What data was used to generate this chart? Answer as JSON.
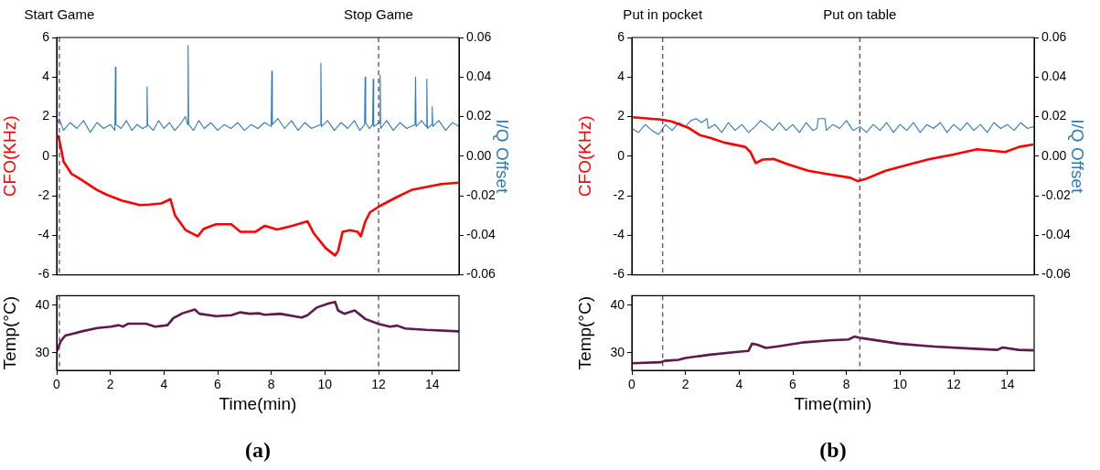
{
  "chart_data": [
    {
      "type": "line",
      "ylabel": "CFO(KHz)",
      "y2label": "I/Q Offset",
      "xlim": [
        0,
        15
      ],
      "xticks": [
        0,
        2,
        4,
        6,
        8,
        10,
        12,
        14
      ],
      "ylim": [
        -6,
        6
      ],
      "yticks": [
        -6,
        -4,
        -2,
        0,
        2,
        4,
        6
      ],
      "y2lim": [
        -0.06,
        0.06
      ],
      "y2ticks": [
        -0.06,
        -0.04,
        -0.02,
        {
          "value": 0,
          "label": "0.00"
        },
        0.02,
        0.04,
        0.06
      ],
      "tick_labels": "y",
      "series": [
        {
          "color": "#2e7bba",
          "x": [
            0,
            0.1,
            0.25,
            0.5,
            0.75,
            1.0,
            1.25,
            1.5,
            1.75,
            2.0,
            2.17,
            2.19,
            2.21,
            2.4,
            2.6,
            2.8,
            3.0,
            3.2,
            3.35,
            3.37,
            3.39,
            3.6,
            3.8,
            4.0,
            4.2,
            4.4,
            4.6,
            4.8,
            4.88,
            4.9,
            4.92,
            5.1,
            5.3,
            5.5,
            5.75,
            6.0,
            6.25,
            6.5,
            6.75,
            7.0,
            7.25,
            7.5,
            7.75,
            8.0,
            8.02,
            8.04,
            8.25,
            8.5,
            8.75,
            9.0,
            9.25,
            9.5,
            9.83,
            9.85,
            9.87,
            10.1,
            10.35,
            10.6,
            10.85,
            11.1,
            11.3,
            11.48,
            11.5,
            11.52,
            11.65,
            11.78,
            11.8,
            11.82,
            12.04,
            12.06,
            12.08,
            12.3,
            12.55,
            12.8,
            13.05,
            13.36,
            13.38,
            13.4,
            13.6,
            13.78,
            13.8,
            13.82,
            13.98,
            14.0,
            14.02,
            14.25,
            14.5,
            14.75,
            15.0
          ],
          "values": [
            0.016,
            0.019,
            0.013,
            0.017,
            0.014,
            0.018,
            0.012,
            0.017,
            0.014,
            0.016,
            0.013,
            0.045,
            0.016,
            0.014,
            0.018,
            0.013,
            0.016,
            0.014,
            0.015,
            0.035,
            0.016,
            0.013,
            0.018,
            0.014,
            0.017,
            0.013,
            0.016,
            0.02,
            0.016,
            0.056,
            0.016,
            0.013,
            0.018,
            0.014,
            0.017,
            0.013,
            0.016,
            0.014,
            0.017,
            0.013,
            0.016,
            0.014,
            0.017,
            0.015,
            0.043,
            0.016,
            0.019,
            0.014,
            0.018,
            0.013,
            0.017,
            0.014,
            0.016,
            0.047,
            0.015,
            0.018,
            0.013,
            0.017,
            0.014,
            0.018,
            0.013,
            0.016,
            0.04,
            0.017,
            0.014,
            0.016,
            0.039,
            0.015,
            0.017,
            0.041,
            0.014,
            0.018,
            0.013,
            0.017,
            0.014,
            0.016,
            0.04,
            0.015,
            0.018,
            0.015,
            0.039,
            0.014,
            0.016,
            0.025,
            0.015,
            0.018,
            0.013,
            0.017,
            0.015
          ],
          "axis": "y2"
        },
        {
          "color": "#ff0000",
          "x": [
            0.06,
            0.26,
            0.55,
            0.83,
            1.51,
            1.85,
            2.42,
            3.1,
            3.44,
            3.9,
            4.24,
            4.41,
            4.81,
            5.26,
            5.48,
            5.94,
            6.51,
            6.85,
            7.42,
            7.76,
            8.22,
            8.78,
            9.35,
            9.58,
            10.03,
            10.38,
            10.49,
            10.66,
            10.94,
            11.22,
            11.34,
            11.51,
            11.68,
            12.02,
            12.65,
            13.22,
            13.78,
            14.35,
            14.98
          ],
          "values": [
            1.07,
            -0.29,
            -0.89,
            -1.11,
            -1.71,
            -1.94,
            -2.24,
            -2.47,
            -2.45,
            -2.39,
            -2.17,
            -2.99,
            -3.74,
            -4.05,
            -3.67,
            -3.44,
            -3.44,
            -3.82,
            -3.82,
            -3.52,
            -3.71,
            -3.52,
            -3.29,
            -3.89,
            -4.65,
            -5.02,
            -4.8,
            -3.82,
            -3.74,
            -3.82,
            -4.05,
            -3.29,
            -2.84,
            -2.54,
            -2.09,
            -1.71,
            -1.56,
            -1.41,
            -1.34
          ]
        }
      ],
      "ref_lines": [
        {
          "axis": "x",
          "value": 0.1,
          "label": "Start Game",
          "color": "#6b2d5c",
          "line_style": "dashed"
        },
        {
          "axis": "x",
          "value": 12,
          "label": "Stop Game",
          "color": "#6b2d5c",
          "line_style": "dashed"
        }
      ]
    },
    {
      "type": "line",
      "xlabel": "Time(min)",
      "ylabel": "Temp(°C)",
      "xlim": [
        0,
        15
      ],
      "xticks": [
        0,
        2,
        4,
        6,
        8,
        10,
        12,
        14
      ],
      "ylim": [
        26.3,
        42
      ],
      "yticks": [
        30,
        40
      ],
      "series": [
        {
          "color": "#5e1a4c",
          "x": [
            0,
            0.15,
            0.32,
            0.6,
            0.94,
            1.51,
            2.02,
            2.31,
            2.48,
            2.65,
            3.33,
            3.67,
            4.13,
            4.35,
            4.69,
            5.15,
            5.32,
            5.94,
            6.51,
            6.85,
            7.19,
            7.53,
            7.76,
            8.33,
            9.13,
            9.35,
            9.69,
            10.15,
            10.38,
            10.49,
            10.72,
            11.11,
            11.51,
            11.97,
            12.42,
            12.7,
            12.99,
            13.78,
            15
          ],
          "values": [
            30.3,
            32.4,
            33.6,
            34.0,
            34.5,
            35.2,
            35.5,
            35.8,
            35.5,
            36.1,
            36.1,
            35.5,
            35.8,
            37.3,
            38.3,
            39.1,
            38.2,
            37.7,
            37.9,
            38.5,
            38.2,
            38.3,
            38.0,
            38.2,
            37.4,
            37.9,
            39.5,
            40.4,
            40.7,
            38.9,
            38.2,
            38.9,
            37.1,
            36.1,
            35.5,
            35.7,
            35.1,
            34.8,
            34.5
          ]
        }
      ],
      "ref_lines": [
        {
          "axis": "x",
          "value": 0.1,
          "color": "#6b2d5c",
          "line_style": "dashed"
        },
        {
          "axis": "x",
          "value": 12,
          "color": "#6b2d5c",
          "line_style": "dashed"
        }
      ],
      "annotations": [
        "(a)"
      ]
    },
    {
      "type": "line",
      "ylabel": "CFO(KHz)",
      "y2label": "I/Q Offset",
      "xlim": [
        0,
        15
      ],
      "xticks": [
        0,
        2,
        4,
        6,
        8,
        10,
        12,
        14
      ],
      "ylim": [
        -6,
        6
      ],
      "yticks": [
        -6,
        -4,
        -2,
        0,
        2,
        4,
        6
      ],
      "y2lim": [
        -0.06,
        0.06
      ],
      "y2ticks": [
        -0.06,
        -0.04,
        -0.02,
        {
          "value": 0,
          "label": "0.00"
        },
        0.02,
        0.04,
        0.06
      ],
      "tick_labels": "y",
      "series": [
        {
          "color": "#ff0000",
          "x": [
            0.04,
            1.09,
            1.48,
            2.13,
            2.53,
            2.92,
            3.44,
            4.23,
            4.42,
            4.62,
            4.88,
            5.28,
            5.8,
            6.58,
            7.37,
            8.15,
            8.42,
            8.68,
            9.46,
            10.25,
            11.03,
            11.95,
            12.87,
            13.92,
            14.44,
            14.97
          ],
          "values": [
            1.97,
            1.85,
            1.76,
            1.42,
            1.07,
            0.93,
            0.69,
            0.47,
            0.21,
            -0.35,
            -0.17,
            -0.14,
            -0.4,
            -0.74,
            -0.92,
            -1.09,
            -1.26,
            -1.17,
            -0.74,
            -0.45,
            -0.17,
            0.07,
            0.35,
            0.21,
            0.47,
            0.59
          ]
        },
        {
          "color": "#2e7bba",
          "x": [
            0,
            0.25,
            0.5,
            0.75,
            1.0,
            1.25,
            1.5,
            1.75,
            2.0,
            2.2,
            2.4,
            2.6,
            2.8,
            2.85,
            3.1,
            3.35,
            3.6,
            3.85,
            4.1,
            4.35,
            4.6,
            4.8,
            5.0,
            5.25,
            5.5,
            5.75,
            6.0,
            6.25,
            6.5,
            6.75,
            6.9,
            6.95,
            7.2,
            7.25,
            7.5,
            7.75,
            8.0,
            8.25,
            8.5,
            8.75,
            9.0,
            9.25,
            9.5,
            9.75,
            10.0,
            10.25,
            10.5,
            10.75,
            11.0,
            11.25,
            11.5,
            11.75,
            12.0,
            12.25,
            12.5,
            12.75,
            13.0,
            13.25,
            13.5,
            13.75,
            14.0,
            14.25,
            14.5,
            14.75,
            15.0
          ],
          "values": [
            0.014,
            0.012,
            0.016,
            0.013,
            0.011,
            0.016,
            0.013,
            0.017,
            0.015,
            0.018,
            0.019,
            0.017,
            0.019,
            0.014,
            0.016,
            0.012,
            0.017,
            0.013,
            0.016,
            0.012,
            0.015,
            0.018,
            0.016,
            0.013,
            0.017,
            0.013,
            0.016,
            0.012,
            0.017,
            0.013,
            0.014,
            0.019,
            0.019,
            0.013,
            0.016,
            0.014,
            0.018,
            0.013,
            0.015,
            0.012,
            0.016,
            0.013,
            0.017,
            0.012,
            0.016,
            0.013,
            0.017,
            0.012,
            0.016,
            0.014,
            0.017,
            0.012,
            0.016,
            0.013,
            0.017,
            0.013,
            0.016,
            0.012,
            0.017,
            0.014,
            0.016,
            0.013,
            0.017,
            0.014,
            0.015
          ],
          "axis": "y2"
        }
      ],
      "ref_lines": [
        {
          "axis": "x",
          "value": 1.15,
          "label": "Put in pocket",
          "color": "#6b2d5c",
          "line_style": "dashed"
        },
        {
          "axis": "x",
          "value": 8.5,
          "label": "Put on table",
          "color": "#6b2d5c",
          "line_style": "dashed"
        }
      ]
    },
    {
      "type": "line",
      "xlabel": "Time(min)",
      "ylabel": "Temp(°C)",
      "xlim": [
        0,
        15
      ],
      "xticks": [
        0,
        2,
        4,
        6,
        8,
        10,
        12,
        14
      ],
      "ylim": [
        26.3,
        42
      ],
      "yticks": [
        30,
        40
      ],
      "series": [
        {
          "color": "#5e1a4c",
          "x": [
            0,
            1.08,
            1.22,
            1.74,
            2,
            2.92,
            3.96,
            4.35,
            4.48,
            4.68,
            5.0,
            5.4,
            6.44,
            7.36,
            8.08,
            8.3,
            8.54,
            9.97,
            11.28,
            12.59,
            13.63,
            13.82,
            14.42,
            14.98
          ],
          "values": [
            27.8,
            28.0,
            28.3,
            28.5,
            28.9,
            29.6,
            30.2,
            30.4,
            31.9,
            31.7,
            31.0,
            31.3,
            32.2,
            32.6,
            32.8,
            33.4,
            33.1,
            31.9,
            31.3,
            30.9,
            30.6,
            31.1,
            30.6,
            30.5
          ]
        }
      ],
      "ref_lines": [
        {
          "axis": "x",
          "value": 1.15,
          "color": "#6b2d5c",
          "line_style": "dashed"
        },
        {
          "axis": "x",
          "value": 8.5,
          "color": "#6b2d5c",
          "line_style": "dashed"
        }
      ],
      "annotations": [
        "(b)"
      ]
    }
  ]
}
